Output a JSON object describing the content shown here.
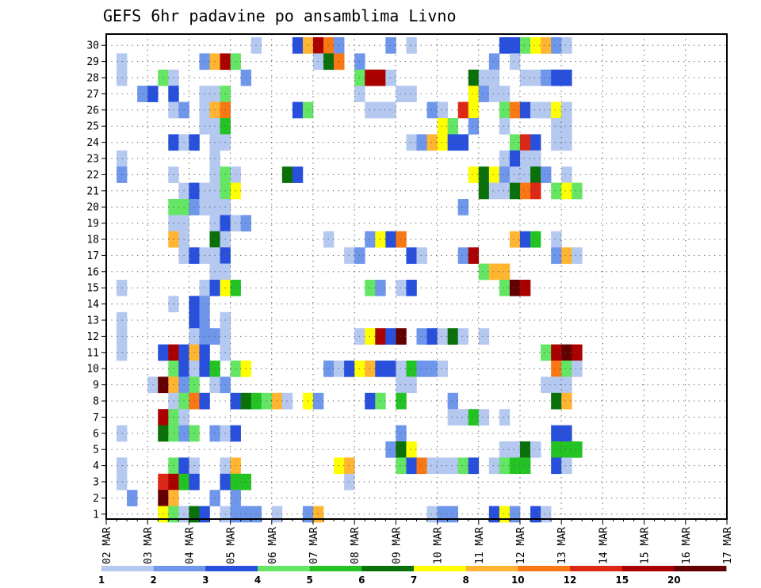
{
  "chart_data": {
    "type": "heatmap",
    "title": "GEFS 6hr padavine po ansamblima Livno",
    "x_tick_labels": [
      "02 MAR",
      "03 MAR",
      "04 MAR",
      "05 MAR",
      "06 MAR",
      "07 MAR",
      "08 MAR",
      "09 MAR",
      "10 MAR",
      "11 MAR",
      "12 MAR",
      "13 MAR",
      "14 MAR",
      "15 MAR",
      "16 MAR",
      "17 MAR"
    ],
    "time_steps_per_day": 4,
    "y_range": [
      1,
      30
    ],
    "y_tick_labels": [
      1,
      2,
      3,
      4,
      5,
      6,
      7,
      8,
      9,
      10,
      11,
      12,
      13,
      14,
      15,
      16,
      17,
      18,
      19,
      20,
      21,
      22,
      23,
      24,
      25,
      26,
      27,
      28,
      29,
      30
    ],
    "grid": "dotted",
    "legend": {
      "placement": "bottom",
      "levels": [
        "1",
        "2",
        "3",
        "4",
        "5",
        "6",
        "7",
        "8",
        "10",
        "12",
        "15",
        "20"
      ],
      "colors": [
        "#b4c8f0",
        "#6e96eb",
        "#2850dc",
        "#64e664",
        "#23c323",
        "#0a700a",
        "#ffff00",
        "#ffb432",
        "#fa7814",
        "#dc2814",
        "#aa0000",
        "#640000"
      ]
    },
    "cells": [
      [
        30,
        14,
        1
      ],
      [
        30,
        18,
        3
      ],
      [
        30,
        19,
        8
      ],
      [
        30,
        20,
        11
      ],
      [
        30,
        21,
        9
      ],
      [
        30,
        22,
        2
      ],
      [
        30,
        27,
        2
      ],
      [
        30,
        29,
        1
      ],
      [
        30,
        38,
        3
      ],
      [
        30,
        39,
        3
      ],
      [
        30,
        40,
        4
      ],
      [
        30,
        41,
        7
      ],
      [
        30,
        42,
        8
      ],
      [
        30,
        43,
        2
      ],
      [
        30,
        44,
        1
      ],
      [
        29,
        1,
        1
      ],
      [
        29,
        9,
        2
      ],
      [
        29,
        10,
        8
      ],
      [
        29,
        11,
        11
      ],
      [
        29,
        12,
        4
      ],
      [
        29,
        20,
        1
      ],
      [
        29,
        21,
        6
      ],
      [
        29,
        22,
        9
      ],
      [
        29,
        24,
        2
      ],
      [
        29,
        37,
        2
      ],
      [
        29,
        39,
        1
      ],
      [
        28,
        1,
        1
      ],
      [
        28,
        5,
        4
      ],
      [
        28,
        6,
        1
      ],
      [
        28,
        13,
        2
      ],
      [
        28,
        24,
        4
      ],
      [
        28,
        25,
        11
      ],
      [
        28,
        26,
        11
      ],
      [
        28,
        27,
        1
      ],
      [
        28,
        35,
        6
      ],
      [
        28,
        36,
        1
      ],
      [
        28,
        37,
        1
      ],
      [
        28,
        40,
        1
      ],
      [
        28,
        41,
        1
      ],
      [
        28,
        42,
        2
      ],
      [
        28,
        43,
        3
      ],
      [
        28,
        44,
        3
      ],
      [
        27,
        3,
        2
      ],
      [
        27,
        4,
        3
      ],
      [
        27,
        6,
        3
      ],
      [
        27,
        9,
        1
      ],
      [
        27,
        10,
        1
      ],
      [
        27,
        11,
        4
      ],
      [
        27,
        24,
        1
      ],
      [
        27,
        28,
        1
      ],
      [
        27,
        29,
        1
      ],
      [
        27,
        35,
        7
      ],
      [
        27,
        36,
        2
      ],
      [
        27,
        37,
        1
      ],
      [
        27,
        38,
        1
      ],
      [
        26,
        6,
        1
      ],
      [
        26,
        7,
        2
      ],
      [
        26,
        9,
        1
      ],
      [
        26,
        10,
        8
      ],
      [
        26,
        11,
        9
      ],
      [
        26,
        18,
        3
      ],
      [
        26,
        19,
        4
      ],
      [
        26,
        25,
        1
      ],
      [
        26,
        26,
        1
      ],
      [
        26,
        27,
        1
      ],
      [
        26,
        31,
        2
      ],
      [
        26,
        32,
        1
      ],
      [
        26,
        34,
        10
      ],
      [
        26,
        35,
        7
      ],
      [
        26,
        38,
        4
      ],
      [
        26,
        39,
        9
      ],
      [
        26,
        40,
        3
      ],
      [
        26,
        41,
        1
      ],
      [
        26,
        42,
        1
      ],
      [
        26,
        43,
        7
      ],
      [
        26,
        44,
        1
      ],
      [
        25,
        9,
        1
      ],
      [
        25,
        10,
        1
      ],
      [
        25,
        11,
        5
      ],
      [
        25,
        32,
        7
      ],
      [
        25,
        33,
        4
      ],
      [
        25,
        35,
        2
      ],
      [
        25,
        38,
        1
      ],
      [
        25,
        43,
        1
      ],
      [
        25,
        44,
        1
      ],
      [
        24,
        6,
        3
      ],
      [
        24,
        7,
        1
      ],
      [
        24,
        8,
        3
      ],
      [
        24,
        10,
        1
      ],
      [
        24,
        11,
        1
      ],
      [
        24,
        29,
        1
      ],
      [
        24,
        30,
        2
      ],
      [
        24,
        31,
        8
      ],
      [
        24,
        32,
        7
      ],
      [
        24,
        33,
        3
      ],
      [
        24,
        34,
        3
      ],
      [
        24,
        39,
        4
      ],
      [
        24,
        40,
        10
      ],
      [
        24,
        41,
        3
      ],
      [
        24,
        43,
        1
      ],
      [
        24,
        44,
        1
      ],
      [
        23,
        1,
        1
      ],
      [
        23,
        10,
        1
      ],
      [
        23,
        38,
        1
      ],
      [
        23,
        39,
        3
      ],
      [
        23,
        40,
        1
      ],
      [
        23,
        41,
        1
      ],
      [
        22,
        1,
        2
      ],
      [
        22,
        6,
        1
      ],
      [
        22,
        10,
        1
      ],
      [
        22,
        11,
        4
      ],
      [
        22,
        12,
        1
      ],
      [
        22,
        17,
        6
      ],
      [
        22,
        18,
        3
      ],
      [
        22,
        35,
        7
      ],
      [
        22,
        36,
        6
      ],
      [
        22,
        37,
        7
      ],
      [
        22,
        38,
        2
      ],
      [
        22,
        39,
        1
      ],
      [
        22,
        40,
        1
      ],
      [
        22,
        41,
        6
      ],
      [
        22,
        42,
        2
      ],
      [
        22,
        44,
        1
      ],
      [
        21,
        7,
        1
      ],
      [
        21,
        8,
        3
      ],
      [
        21,
        9,
        1
      ],
      [
        21,
        10,
        1
      ],
      [
        21,
        11,
        4
      ],
      [
        21,
        12,
        7
      ],
      [
        21,
        36,
        6
      ],
      [
        21,
        37,
        1
      ],
      [
        21,
        38,
        1
      ],
      [
        21,
        39,
        6
      ],
      [
        21,
        40,
        9
      ],
      [
        21,
        41,
        10
      ],
      [
        21,
        43,
        4
      ],
      [
        21,
        44,
        7
      ],
      [
        21,
        45,
        4
      ],
      [
        20,
        6,
        4
      ],
      [
        20,
        7,
        4
      ],
      [
        20,
        8,
        2
      ],
      [
        20,
        9,
        1
      ],
      [
        20,
        10,
        1
      ],
      [
        20,
        11,
        1
      ],
      [
        20,
        34,
        2
      ],
      [
        19,
        6,
        1
      ],
      [
        19,
        7,
        1
      ],
      [
        19,
        10,
        1
      ],
      [
        19,
        11,
        3
      ],
      [
        19,
        12,
        1
      ],
      [
        19,
        13,
        2
      ],
      [
        18,
        6,
        8
      ],
      [
        18,
        7,
        1
      ],
      [
        18,
        10,
        6
      ],
      [
        18,
        11,
        1
      ],
      [
        18,
        21,
        1
      ],
      [
        18,
        25,
        2
      ],
      [
        18,
        26,
        7
      ],
      [
        18,
        27,
        3
      ],
      [
        18,
        28,
        9
      ],
      [
        18,
        39,
        8
      ],
      [
        18,
        40,
        3
      ],
      [
        18,
        41,
        5
      ],
      [
        18,
        43,
        1
      ],
      [
        17,
        7,
        1
      ],
      [
        17,
        8,
        3
      ],
      [
        17,
        9,
        1
      ],
      [
        17,
        10,
        1
      ],
      [
        17,
        11,
        3
      ],
      [
        17,
        23,
        1
      ],
      [
        17,
        24,
        2
      ],
      [
        17,
        29,
        3
      ],
      [
        17,
        30,
        1
      ],
      [
        17,
        34,
        2
      ],
      [
        17,
        35,
        11
      ],
      [
        17,
        43,
        2
      ],
      [
        17,
        44,
        8
      ],
      [
        17,
        45,
        1
      ],
      [
        16,
        10,
        1
      ],
      [
        16,
        11,
        1
      ],
      [
        16,
        36,
        4
      ],
      [
        16,
        37,
        8
      ],
      [
        16,
        38,
        8
      ],
      [
        15,
        1,
        1
      ],
      [
        15,
        9,
        1
      ],
      [
        15,
        10,
        3
      ],
      [
        15,
        11,
        7
      ],
      [
        15,
        12,
        5
      ],
      [
        15,
        25,
        4
      ],
      [
        15,
        26,
        2
      ],
      [
        15,
        28,
        1
      ],
      [
        15,
        29,
        3
      ],
      [
        15,
        38,
        4
      ],
      [
        15,
        39,
        12
      ],
      [
        15,
        40,
        11
      ],
      [
        14,
        6,
        1
      ],
      [
        14,
        8,
        3
      ],
      [
        14,
        9,
        2
      ],
      [
        13,
        1,
        1
      ],
      [
        13,
        8,
        3
      ],
      [
        13,
        9,
        2
      ],
      [
        13,
        11,
        1
      ],
      [
        12,
        1,
        1
      ],
      [
        12,
        8,
        1
      ],
      [
        12,
        9,
        2
      ],
      [
        12,
        10,
        2
      ],
      [
        12,
        11,
        1
      ],
      [
        12,
        24,
        1
      ],
      [
        12,
        25,
        7
      ],
      [
        12,
        26,
        11
      ],
      [
        12,
        27,
        3
      ],
      [
        12,
        28,
        12
      ],
      [
        12,
        30,
        2
      ],
      [
        12,
        31,
        3
      ],
      [
        12,
        32,
        1
      ],
      [
        12,
        33,
        6
      ],
      [
        12,
        34,
        1
      ],
      [
        12,
        36,
        1
      ],
      [
        11,
        1,
        1
      ],
      [
        11,
        5,
        3
      ],
      [
        11,
        6,
        11
      ],
      [
        11,
        7,
        3
      ],
      [
        11,
        8,
        8
      ],
      [
        11,
        9,
        3
      ],
      [
        11,
        11,
        1
      ],
      [
        11,
        42,
        4
      ],
      [
        11,
        43,
        11
      ],
      [
        11,
        44,
        12
      ],
      [
        11,
        45,
        11
      ],
      [
        10,
        6,
        4
      ],
      [
        10,
        7,
        3
      ],
      [
        10,
        8,
        1
      ],
      [
        10,
        9,
        3
      ],
      [
        10,
        10,
        5
      ],
      [
        10,
        12,
        4
      ],
      [
        10,
        13,
        7
      ],
      [
        10,
        21,
        2
      ],
      [
        10,
        22,
        1
      ],
      [
        10,
        23,
        3
      ],
      [
        10,
        24,
        7
      ],
      [
        10,
        25,
        8
      ],
      [
        10,
        26,
        3
      ],
      [
        10,
        27,
        3
      ],
      [
        10,
        28,
        1
      ],
      [
        10,
        29,
        5
      ],
      [
        10,
        30,
        2
      ],
      [
        10,
        31,
        2
      ],
      [
        10,
        32,
        1
      ],
      [
        10,
        43,
        9
      ],
      [
        10,
        44,
        4
      ],
      [
        10,
        45,
        1
      ],
      [
        9,
        4,
        1
      ],
      [
        9,
        5,
        12
      ],
      [
        9,
        6,
        8
      ],
      [
        9,
        7,
        2
      ],
      [
        9,
        8,
        4
      ],
      [
        9,
        10,
        1
      ],
      [
        9,
        11,
        2
      ],
      [
        9,
        28,
        1
      ],
      [
        9,
        29,
        1
      ],
      [
        9,
        42,
        1
      ],
      [
        9,
        43,
        1
      ],
      [
        9,
        44,
        1
      ],
      [
        8,
        6,
        1
      ],
      [
        8,
        7,
        4
      ],
      [
        8,
        8,
        9
      ],
      [
        8,
        9,
        3
      ],
      [
        8,
        12,
        3
      ],
      [
        8,
        13,
        6
      ],
      [
        8,
        14,
        5
      ],
      [
        8,
        15,
        4
      ],
      [
        8,
        16,
        8
      ],
      [
        8,
        17,
        1
      ],
      [
        8,
        19,
        7
      ],
      [
        8,
        20,
        2
      ],
      [
        8,
        25,
        3
      ],
      [
        8,
        26,
        4
      ],
      [
        8,
        28,
        5
      ],
      [
        8,
        33,
        2
      ],
      [
        8,
        43,
        6
      ],
      [
        8,
        44,
        8
      ],
      [
        7,
        5,
        11
      ],
      [
        7,
        6,
        4
      ],
      [
        7,
        7,
        1
      ],
      [
        7,
        33,
        1
      ],
      [
        7,
        34,
        1
      ],
      [
        7,
        35,
        5
      ],
      [
        7,
        36,
        1
      ],
      [
        7,
        38,
        1
      ],
      [
        6,
        1,
        1
      ],
      [
        6,
        5,
        6
      ],
      [
        6,
        6,
        4
      ],
      [
        6,
        7,
        2
      ],
      [
        6,
        8,
        4
      ],
      [
        6,
        10,
        2
      ],
      [
        6,
        11,
        1
      ],
      [
        6,
        12,
        3
      ],
      [
        6,
        28,
        2
      ],
      [
        6,
        43,
        3
      ],
      [
        6,
        44,
        3
      ],
      [
        5,
        27,
        2
      ],
      [
        5,
        28,
        6
      ],
      [
        5,
        29,
        7
      ],
      [
        5,
        38,
        1
      ],
      [
        5,
        39,
        1
      ],
      [
        5,
        40,
        6
      ],
      [
        5,
        41,
        1
      ],
      [
        5,
        43,
        5
      ],
      [
        5,
        44,
        5
      ],
      [
        5,
        45,
        5
      ],
      [
        4,
        1,
        1
      ],
      [
        4,
        6,
        4
      ],
      [
        4,
        7,
        3
      ],
      [
        4,
        8,
        1
      ],
      [
        4,
        11,
        1
      ],
      [
        4,
        12,
        8
      ],
      [
        4,
        22,
        7
      ],
      [
        4,
        23,
        8
      ],
      [
        4,
        28,
        4
      ],
      [
        4,
        29,
        3
      ],
      [
        4,
        30,
        9
      ],
      [
        4,
        31,
        1
      ],
      [
        4,
        32,
        1
      ],
      [
        4,
        33,
        1
      ],
      [
        4,
        34,
        4
      ],
      [
        4,
        35,
        3
      ],
      [
        4,
        37,
        1
      ],
      [
        4,
        38,
        4
      ],
      [
        4,
        39,
        5
      ],
      [
        4,
        40,
        5
      ],
      [
        4,
        43,
        3
      ],
      [
        4,
        44,
        1
      ],
      [
        3,
        1,
        1
      ],
      [
        3,
        5,
        10
      ],
      [
        3,
        6,
        11
      ],
      [
        3,
        7,
        5
      ],
      [
        3,
        8,
        3
      ],
      [
        3,
        11,
        3
      ],
      [
        3,
        12,
        5
      ],
      [
        3,
        13,
        5
      ],
      [
        3,
        23,
        1
      ],
      [
        2,
        2,
        2
      ],
      [
        2,
        5,
        12
      ],
      [
        2,
        6,
        8
      ],
      [
        2,
        10,
        2
      ],
      [
        2,
        12,
        2
      ],
      [
        1,
        5,
        7
      ],
      [
        1,
        6,
        4
      ],
      [
        1,
        7,
        1
      ],
      [
        1,
        8,
        6
      ],
      [
        1,
        9,
        3
      ],
      [
        1,
        11,
        1
      ],
      [
        1,
        12,
        2
      ],
      [
        1,
        13,
        2
      ],
      [
        1,
        14,
        2
      ],
      [
        1,
        16,
        1
      ],
      [
        1,
        19,
        2
      ],
      [
        1,
        20,
        8
      ],
      [
        1,
        31,
        1
      ],
      [
        1,
        32,
        2
      ],
      [
        1,
        33,
        2
      ],
      [
        1,
        37,
        3
      ],
      [
        1,
        38,
        7
      ],
      [
        1,
        39,
        2
      ],
      [
        1,
        41,
        3
      ],
      [
        1,
        42,
        1
      ]
    ]
  }
}
